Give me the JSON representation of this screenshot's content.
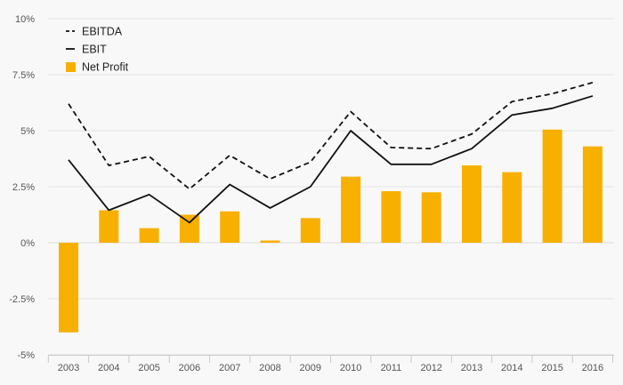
{
  "chart_data": {
    "type": "bar",
    "categories": [
      "2003",
      "2004",
      "2005",
      "2006",
      "2007",
      "2008",
      "2009",
      "2010",
      "2011",
      "2012",
      "2013",
      "2014",
      "2015",
      "2016"
    ],
    "series": [
      {
        "name": "EBITDA",
        "kind": "line",
        "style": "dashed",
        "color": "#111111",
        "values": [
          6.2,
          3.45,
          3.85,
          2.4,
          3.9,
          2.85,
          3.6,
          5.85,
          4.25,
          4.2,
          4.85,
          6.3,
          6.65,
          7.15
        ]
      },
      {
        "name": "EBIT",
        "kind": "line",
        "style": "solid",
        "color": "#111111",
        "values": [
          3.7,
          1.45,
          2.15,
          0.9,
          2.6,
          1.55,
          2.5,
          5.0,
          3.5,
          3.5,
          4.2,
          5.7,
          6.0,
          6.55
        ]
      },
      {
        "name": "Net Profit",
        "kind": "bar",
        "color": "#f8b000",
        "values": [
          -4.0,
          1.45,
          0.65,
          1.25,
          1.4,
          0.1,
          1.1,
          2.95,
          2.3,
          2.25,
          3.45,
          3.15,
          5.05,
          4.3
        ]
      }
    ],
    "y_ticks": [
      10,
      7.5,
      5,
      2.5,
      0,
      -2.5,
      -5
    ],
    "y_tick_labels": [
      "10%",
      "7.5%",
      "5%",
      "2.5%",
      "0%",
      "-2.5%",
      "-5%"
    ],
    "ylim": [
      -5,
      10
    ],
    "grid": true,
    "legend_position": "top-left"
  }
}
